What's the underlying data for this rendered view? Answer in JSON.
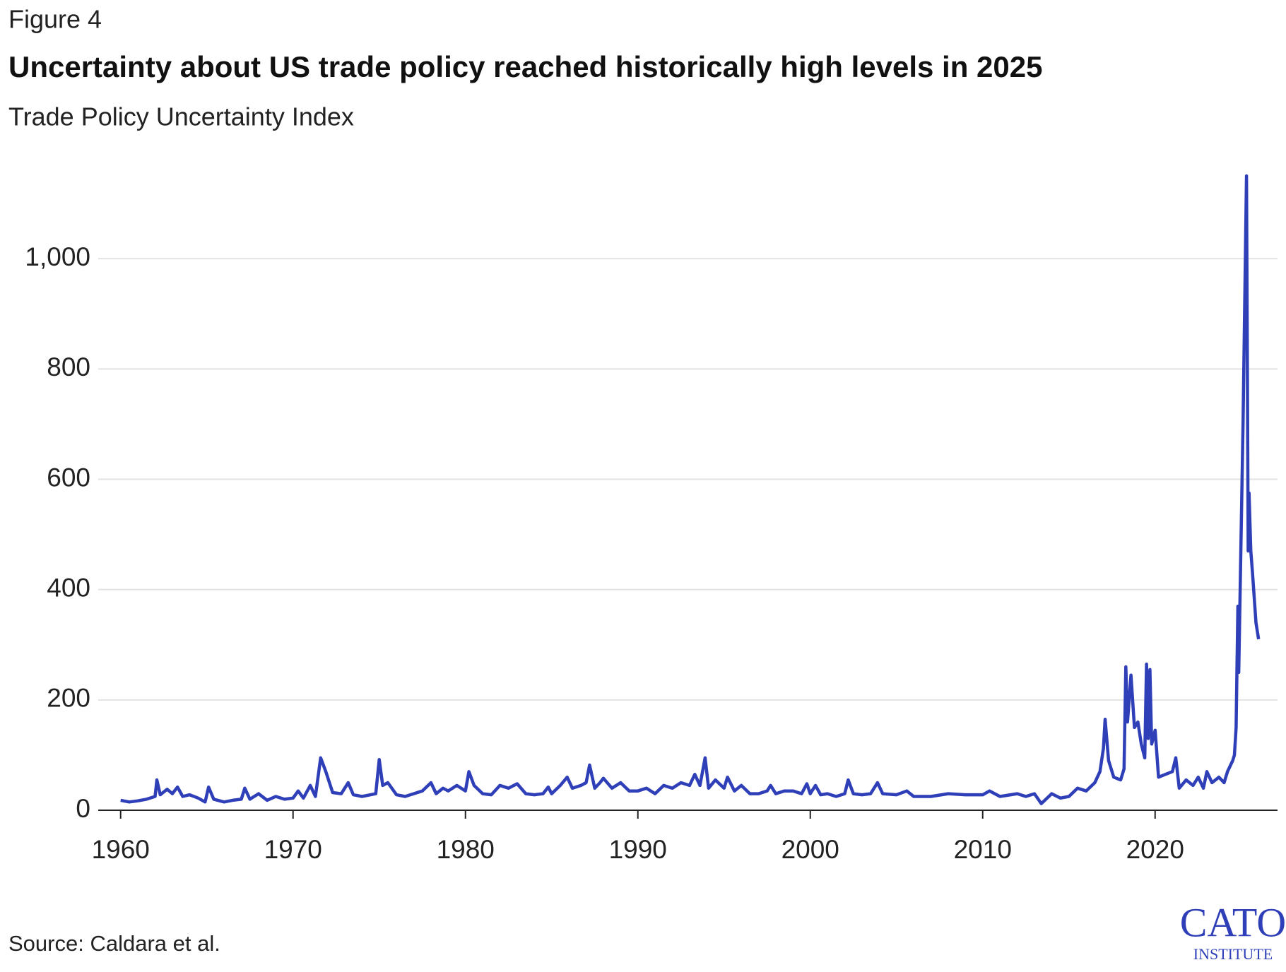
{
  "chart_data": {
    "type": "line",
    "figure_label": "Figure 4",
    "title": "Uncertainty about US trade policy reached historically high levels in 2025",
    "subtitle": "Trade Policy Uncertainty Index",
    "source": "Source: Caldara et al.",
    "logo": {
      "name": "CATO",
      "subname": "INSTITUTE"
    },
    "xlim": [
      1958.7,
      2027.1
    ],
    "xticks": [
      1960,
      1970,
      1980,
      1990,
      2000,
      2010,
      2020
    ],
    "ylim": [
      0,
      1200
    ],
    "yticks": [
      0,
      200,
      400,
      600,
      800,
      {
        "value": 1000,
        "label": "1,000"
      }
    ],
    "grid": true,
    "series": [
      {
        "name": "Trade Policy Uncertainty Index",
        "color": "#2f3fb8",
        "x": [
          1960,
          1960.5,
          1961,
          1961.5,
          1962,
          1962.1,
          1962.3,
          1962.7,
          1963,
          1963.3,
          1963.6,
          1964,
          1964.5,
          1964.9,
          1965.1,
          1965.4,
          1966,
          1966.5,
          1967,
          1967.2,
          1967.5,
          1968,
          1968.5,
          1969,
          1969.5,
          1970,
          1970.3,
          1970.6,
          1971,
          1971.3,
          1971.6,
          1971.9,
          1972.3,
          1972.8,
          1973.2,
          1973.5,
          1974,
          1974.5,
          1974.8,
          1975,
          1975.2,
          1975.5,
          1976,
          1976.5,
          1977,
          1977.5,
          1978,
          1978.3,
          1978.7,
          1979,
          1979.5,
          1980,
          1980.2,
          1980.5,
          1981,
          1981.5,
          1982,
          1982.5,
          1983,
          1983.5,
          1984,
          1984.5,
          1984.8,
          1985,
          1985.5,
          1985.9,
          1986.2,
          1986.7,
          1987,
          1987.2,
          1987.5,
          1987.8,
          1988,
          1988.5,
          1989,
          1989.5,
          1990,
          1990.5,
          1991,
          1991.5,
          1992,
          1992.5,
          1993,
          1993.3,
          1993.6,
          1993.9,
          1994.1,
          1994.5,
          1995,
          1995.2,
          1995.6,
          1996,
          1996.5,
          1997,
          1997.5,
          1997.7,
          1998,
          1998.5,
          1999,
          1999.5,
          1999.8,
          2000,
          2000.3,
          2000.6,
          2001,
          2001.5,
          2002,
          2002.2,
          2002.5,
          2003,
          2003.5,
          2003.9,
          2004.2,
          2005,
          2005.6,
          2006,
          2007,
          2008,
          2009,
          2010,
          2010.4,
          2011,
          2012,
          2012.5,
          2013,
          2013.4,
          2014,
          2014.5,
          2015,
          2015.5,
          2016,
          2016.5,
          2016.8,
          2017,
          2017.1,
          2017.3,
          2017.6,
          2018,
          2018.2,
          2018.3,
          2018.4,
          2018.6,
          2018.8,
          2019,
          2019.2,
          2019.4,
          2019.5,
          2019.6,
          2019.7,
          2019.8,
          2020,
          2020.2,
          2020.6,
          2021,
          2021.2,
          2021.4,
          2021.8,
          2022.2,
          2022.5,
          2022.8,
          2023,
          2023.3,
          2023.7,
          2024,
          2024.2,
          2024.5,
          2024.6,
          2024.7,
          2024.8,
          2024.85,
          2025.1,
          2025.3,
          2025.4,
          2025.45,
          2025.55,
          2025.65,
          2025.85,
          2026
        ],
        "values": [
          18,
          15,
          17,
          20,
          25,
          55,
          28,
          38,
          30,
          42,
          25,
          28,
          22,
          15,
          42,
          20,
          15,
          18,
          20,
          40,
          20,
          30,
          18,
          25,
          20,
          22,
          35,
          22,
          45,
          25,
          95,
          70,
          32,
          30,
          50,
          28,
          25,
          28,
          30,
          92,
          45,
          50,
          28,
          25,
          30,
          35,
          50,
          30,
          40,
          35,
          45,
          35,
          70,
          45,
          30,
          28,
          45,
          40,
          48,
          30,
          28,
          30,
          42,
          30,
          45,
          60,
          40,
          45,
          50,
          82,
          40,
          50,
          58,
          40,
          50,
          35,
          35,
          40,
          30,
          45,
          40,
          50,
          45,
          65,
          45,
          95,
          40,
          55,
          40,
          60,
          35,
          45,
          30,
          30,
          35,
          45,
          30,
          35,
          35,
          30,
          48,
          30,
          45,
          28,
          30,
          25,
          30,
          55,
          30,
          28,
          30,
          50,
          30,
          28,
          35,
          25,
          25,
          30,
          28,
          28,
          35,
          25,
          30,
          25,
          30,
          12,
          30,
          22,
          25,
          40,
          35,
          50,
          70,
          112,
          165,
          90,
          60,
          55,
          75,
          260,
          160,
          245,
          150,
          160,
          120,
          95,
          265,
          130,
          255,
          120,
          145,
          60,
          65,
          70,
          95,
          40,
          55,
          45,
          60,
          40,
          70,
          50,
          60,
          50,
          70,
          90,
          100,
          150,
          370,
          250,
          700,
          1150,
          470,
          575,
          470,
          430,
          340,
          310
        ]
      }
    ]
  }
}
